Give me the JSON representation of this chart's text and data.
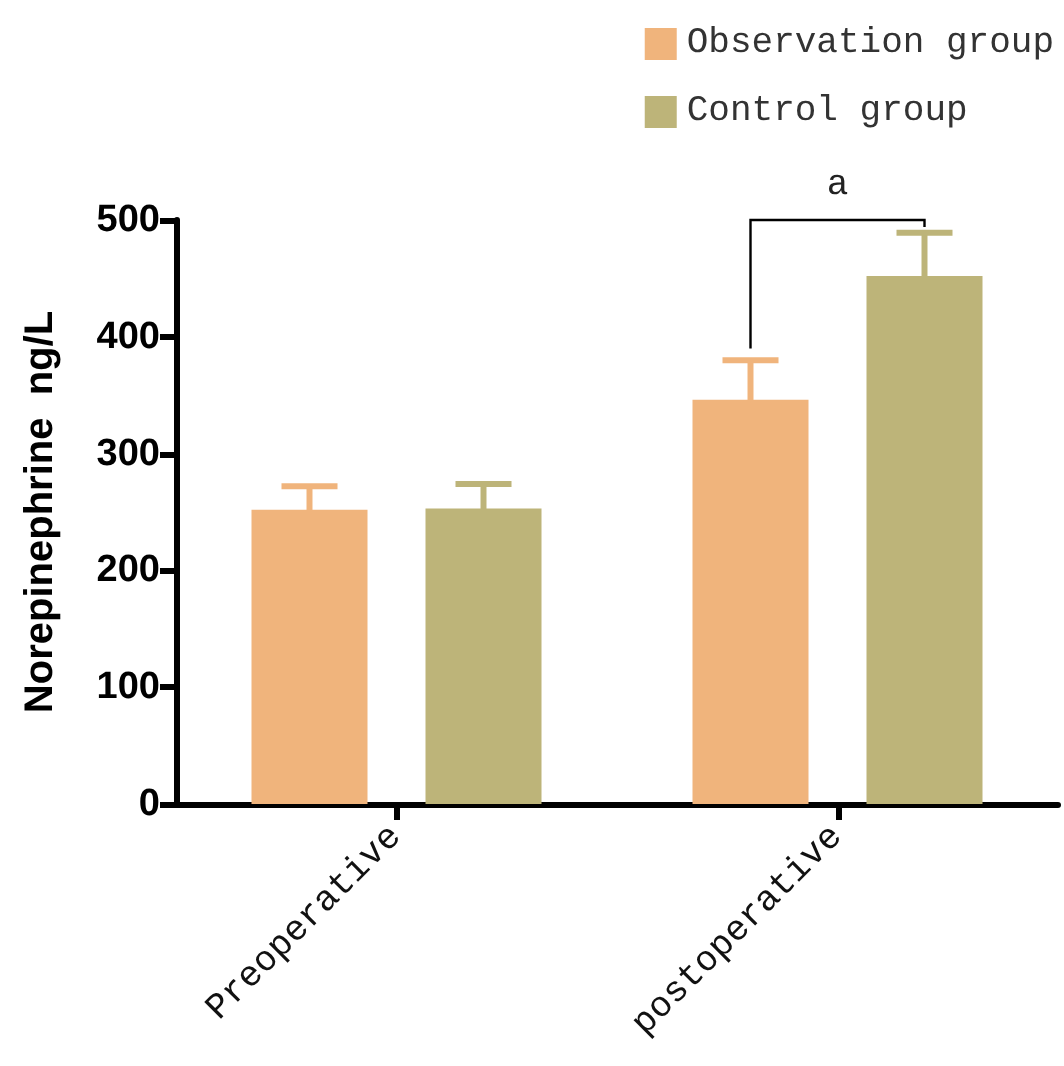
{
  "chart_data": {
    "type": "bar",
    "ylabel": "Norepinephrine  ng/L",
    "categories": [
      "Preoperative",
      "postoperative"
    ],
    "series": [
      {
        "name": "Observation group",
        "color": "#f0b47c",
        "values": [
          252,
          346
        ],
        "errors": [
          20,
          34
        ]
      },
      {
        "name": "Control group",
        "color": "#bdb479",
        "values": [
          253,
          452
        ],
        "errors": [
          21,
          37
        ]
      }
    ],
    "ylim": [
      0,
      500
    ],
    "yticks": [
      0,
      100,
      200,
      300,
      400,
      500
    ],
    "grid": false,
    "legend": "top right",
    "annotations": [
      "a"
    ]
  }
}
